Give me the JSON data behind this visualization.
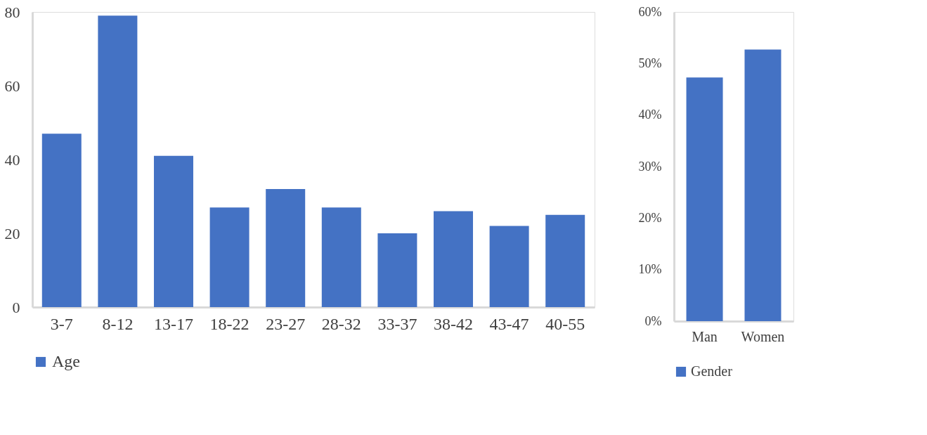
{
  "chart_data": [
    {
      "type": "bar",
      "categories": [
        "3-7",
        "8-12",
        "13-17",
        "18-22",
        "23-27",
        "28-32",
        "33-37",
        "38-42",
        "43-47",
        "40-55"
      ],
      "series": [
        {
          "name": "Age",
          "color": "#4472c4",
          "values": [
            47,
            79,
            41,
            27,
            32,
            27,
            20,
            26,
            22,
            25
          ]
        }
      ],
      "ylim": [
        0,
        80
      ],
      "yticks": [
        0,
        20,
        40,
        60,
        80
      ],
      "grid": false,
      "legend": "bottom"
    },
    {
      "type": "bar",
      "categories": [
        "Man",
        "Women"
      ],
      "series": [
        {
          "name": "Gender",
          "color": "#4472c4",
          "values": [
            47.3,
            52.7
          ]
        }
      ],
      "ylim": [
        0,
        60
      ],
      "yticks": [
        {
          "value": 0,
          "label": "0%"
        },
        {
          "value": 10,
          "label": "10%"
        },
        {
          "value": 20,
          "label": "20%"
        },
        {
          "value": 30,
          "label": "30%"
        },
        {
          "value": 40,
          "label": "40%"
        },
        {
          "value": 50,
          "label": "50%"
        },
        {
          "value": 60,
          "label": "60%"
        }
      ],
      "grid": false,
      "legend": "bottom"
    }
  ]
}
